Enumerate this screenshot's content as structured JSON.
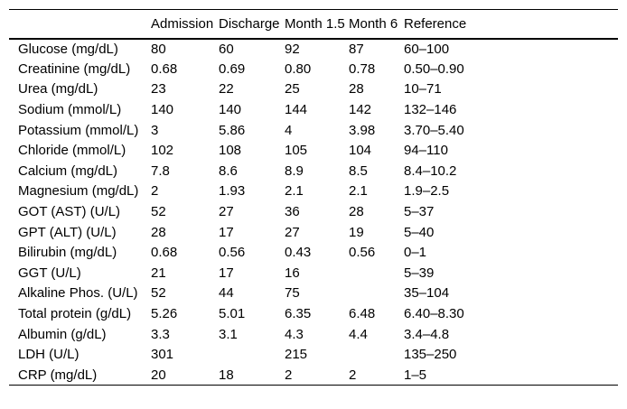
{
  "table": {
    "columns": [
      "",
      "Admission",
      "Discharge",
      "Month 1.5",
      "Month 6",
      "Reference"
    ],
    "rows": [
      {
        "label": "Glucose (mg/dL)",
        "values": [
          "80",
          "60",
          "92",
          "87",
          "60–100"
        ]
      },
      {
        "label": "Creatinine (mg/dL)",
        "values": [
          "0.68",
          "0.69",
          "0.80",
          "0.78",
          "0.50–0.90"
        ]
      },
      {
        "label": "Urea (mg/dL)",
        "values": [
          "23",
          "22",
          "25",
          "28",
          "10–71"
        ]
      },
      {
        "label": "Sodium (mmol/L)",
        "values": [
          "140",
          "140",
          "144",
          "142",
          "132–146"
        ]
      },
      {
        "label": "Potassium (mmol/L)",
        "values": [
          "3",
          "5.86",
          "4",
          "3.98",
          "3.70–5.40"
        ]
      },
      {
        "label": "Chloride (mmol/L)",
        "values": [
          "102",
          "108",
          "105",
          "104",
          "94–110"
        ]
      },
      {
        "label": "Calcium (mg/dL)",
        "values": [
          "7.8",
          "8.6",
          "8.9",
          "8.5",
          "8.4–10.2"
        ]
      },
      {
        "label": "Magnesium (mg/dL)",
        "values": [
          "2",
          "1.93",
          "2.1",
          "2.1",
          "1.9–2.5"
        ]
      },
      {
        "label": "GOT (AST) (U/L)",
        "values": [
          "52",
          "27",
          "36",
          "28",
          "5–37"
        ]
      },
      {
        "label": "GPT (ALT) (U/L)",
        "values": [
          "28",
          "17",
          "27",
          "19",
          "5–40"
        ]
      },
      {
        "label": "Bilirubin (mg/dL)",
        "values": [
          "0.68",
          "0.56",
          "0.43",
          "0.56",
          "0–1"
        ]
      },
      {
        "label": "GGT (U/L)",
        "values": [
          "21",
          "17",
          "16",
          "",
          "5–39"
        ]
      },
      {
        "label": "Alkaline Phos. (U/L)",
        "values": [
          "52",
          "44",
          "75",
          "",
          "35–104"
        ]
      },
      {
        "label": "Total protein (g/dL)",
        "values": [
          "5.26",
          "5.01",
          "6.35",
          "6.48",
          "6.40–8.30"
        ]
      },
      {
        "label": "Albumin (g/dL)",
        "values": [
          "3.3",
          "3.1",
          "4.3",
          "4.4",
          "3.4–4.8"
        ]
      },
      {
        "label": "LDH (U/L)",
        "values": [
          "301",
          "",
          "215",
          "",
          "135–250"
        ]
      },
      {
        "label": "CRP (mg/dL)",
        "values": [
          "20",
          "18",
          "2",
          "2",
          "1–5"
        ]
      }
    ],
    "colors": {
      "text": "#000000",
      "background": "#ffffff",
      "rule": "#000000"
    }
  }
}
